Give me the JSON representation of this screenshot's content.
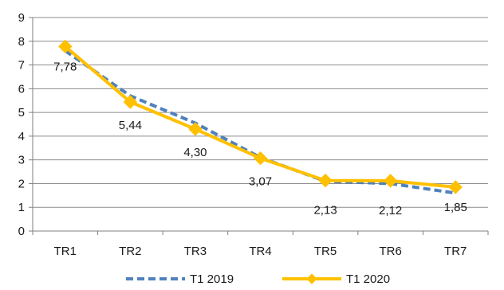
{
  "chart_data": {
    "type": "line",
    "categories": [
      "TR1",
      "TR2",
      "TR3",
      "TR4",
      "TR5",
      "TR6",
      "TR7"
    ],
    "ylim": [
      0,
      9
    ],
    "yticks": [
      0,
      1,
      2,
      3,
      4,
      5,
      6,
      7,
      8,
      9
    ],
    "grid": true,
    "legend_position": "bottom",
    "series": [
      {
        "name": "T1 2019",
        "values": [
          7.6,
          5.7,
          4.55,
          3.1,
          2.1,
          2.0,
          1.6
        ],
        "color": "#4f81bd",
        "style": "dashed"
      },
      {
        "name": "T1 2020",
        "values": [
          7.78,
          5.44,
          4.3,
          3.07,
          2.13,
          2.12,
          1.85
        ],
        "color": "#ffc000",
        "style": "solid",
        "marker": "diamond",
        "data_labels": [
          "7,78",
          "5,44",
          "4,30",
          "3,07",
          "2,13",
          "2,12",
          "1,85"
        ]
      }
    ]
  }
}
